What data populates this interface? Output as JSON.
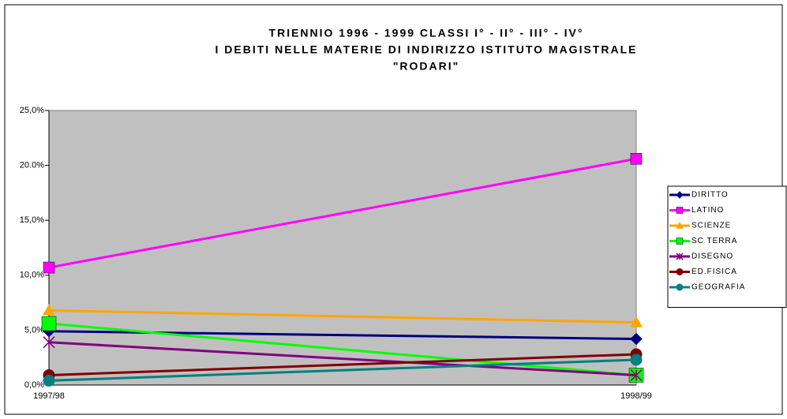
{
  "chart_data": {
    "type": "line",
    "title": [
      "TRIENNIO 1996 - 1999 CLASSI I° - II° - III° - IV°",
      "I DEBITI NELLE MATERIE DI INDIRIZZO ISTITUTO MAGISTRALE",
      "\"RODARI\""
    ],
    "categories": [
      "1997/98",
      "1998/99"
    ],
    "series": [
      {
        "name": "DIRITTO",
        "color": "#000080",
        "marker": "diamond",
        "values": [
          4.9,
          4.2
        ]
      },
      {
        "name": "LATINO",
        "color": "#ff00ff",
        "marker": "square",
        "values": [
          10.7,
          20.6
        ]
      },
      {
        "name": "SCIENZE",
        "color": "#ffa500",
        "marker": "triangle",
        "values": [
          6.8,
          5.7
        ]
      },
      {
        "name": "SC TERRA",
        "color": "#00ff00",
        "marker": "square",
        "values": [
          5.6,
          0.9
        ]
      },
      {
        "name": "DISEGNO",
        "color": "#800080",
        "marker": "star",
        "values": [
          3.9,
          0.9
        ]
      },
      {
        "name": "ED.FISICA",
        "color": "#800000",
        "marker": "circle",
        "values": [
          0.9,
          2.8
        ]
      },
      {
        "name": "GEOGRAFIA",
        "color": "#008080",
        "marker": "circle",
        "values": [
          0.4,
          2.3
        ]
      }
    ],
    "ylim": [
      0,
      25
    ],
    "yticks": [
      {
        "value": 0,
        "label": "0,0%"
      },
      {
        "value": 5,
        "label": "5,0%"
      },
      {
        "value": 10,
        "label": "10,0%"
      },
      {
        "value": 15,
        "label": "15,0%"
      },
      {
        "value": 20,
        "label": "20.0%"
      },
      {
        "value": 25,
        "label": "25,0%"
      }
    ],
    "plot_background": "#c0c0c0",
    "legend": "right"
  }
}
